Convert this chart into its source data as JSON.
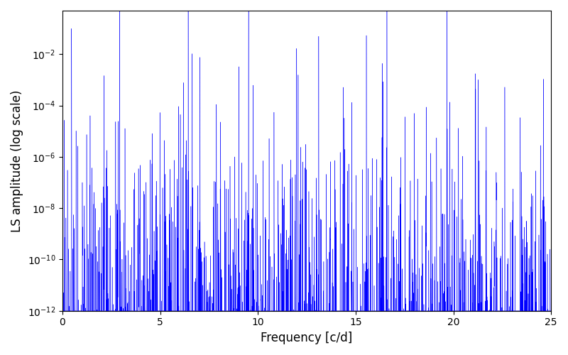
{
  "title": "",
  "xlabel": "Frequency [c/d]",
  "ylabel": "LS amplitude (log scale)",
  "line_color": "#0000ff",
  "xlim": [
    0,
    25
  ],
  "ylim": [
    1e-12,
    1.0
  ],
  "freq_max": 25.0,
  "n_points": 50000,
  "seed": 1234,
  "figsize": [
    8.0,
    5.0
  ],
  "dpi": 100,
  "background_color": "#ffffff"
}
